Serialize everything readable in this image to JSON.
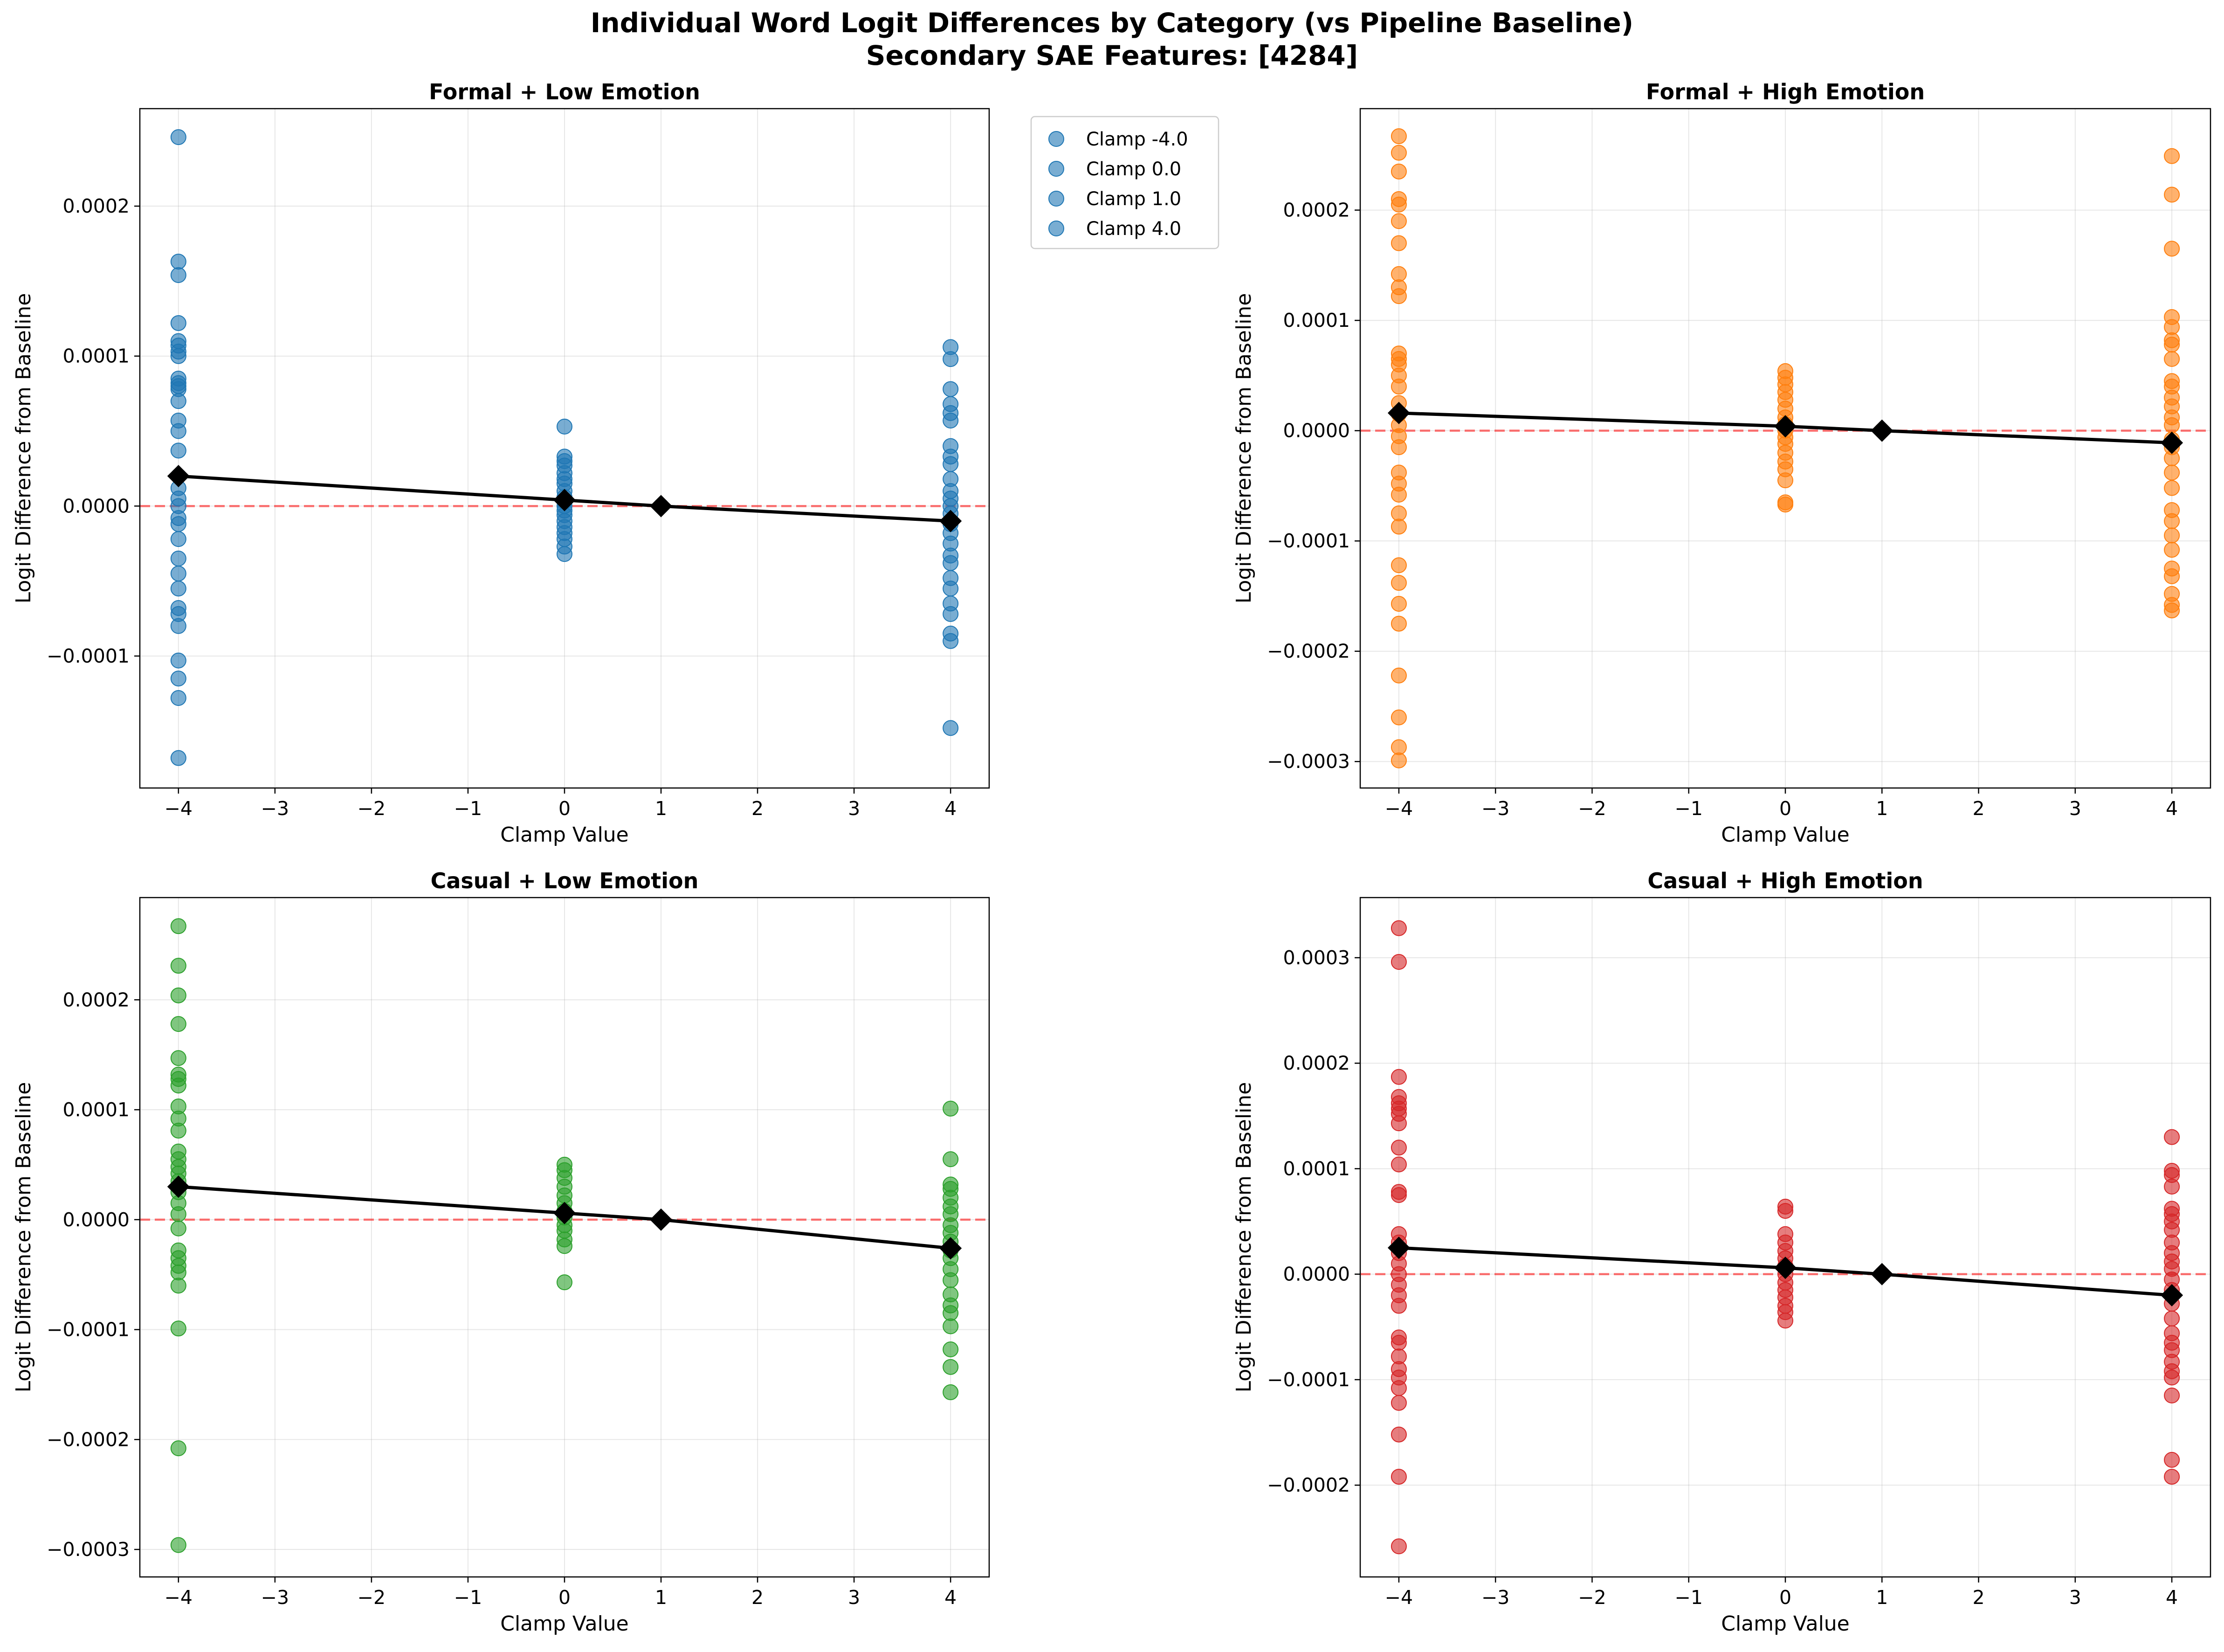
{
  "title_line1": "Individual Word Logit Differences by Category (vs Pipeline Baseline)",
  "title_line2": "Secondary SAE Features: [4284]",
  "legend": {
    "entries": [
      "Clamp -4.0",
      "Clamp 0.0",
      "Clamp 1.0",
      "Clamp 4.0"
    ],
    "color": "#1f77b4"
  },
  "chart_data": [
    {
      "type": "scatter",
      "title": "Formal + Low Emotion",
      "xlabel": "Clamp Value",
      "ylabel": "Logit Difference from Baseline",
      "color": "#1f77b4",
      "xlim": [
        -4.4,
        4.4
      ],
      "ylim": [
        -0.000188,
        0.000265
      ],
      "xticks": [
        -4,
        -3,
        -2,
        -1,
        0,
        1,
        2,
        3,
        4
      ],
      "yticks": [
        -0.0001,
        0.0,
        0.0001,
        0.0002
      ],
      "ytick_labels": [
        "−0.0001",
        "0.0000",
        "0.0001",
        "0.0002"
      ],
      "baseline": 0,
      "points": [
        {
          "x": -4,
          "ys": [
            0.000246,
            0.000163,
            0.000154,
            0.000122,
            0.00011,
            0.000107,
            0.000103,
            0.0001,
            8.5e-05,
            8.2e-05,
            8e-05,
            7.8e-05,
            7e-05,
            5.7e-05,
            5e-05,
            3.7e-05,
            2e-05,
            1.2e-05,
            5e-06,
            0.0,
            -8e-06,
            -1.2e-05,
            -2.2e-05,
            -3.5e-05,
            -4.5e-05,
            -5.5e-05,
            -6.8e-05,
            -7.2e-05,
            -8e-05,
            -0.000103,
            -0.000115,
            -0.000128,
            -0.000168
          ]
        },
        {
          "x": 0,
          "ys": [
            5.3e-05,
            3.3e-05,
            3e-05,
            2.7e-05,
            2.2e-05,
            1.8e-05,
            1.5e-05,
            1e-05,
            6e-06,
            3e-06,
            0.0,
            -3e-06,
            -6e-06,
            -1e-05,
            -1.4e-05,
            -1.8e-05,
            -2.2e-05,
            -2.7e-05,
            -3.2e-05
          ]
        },
        {
          "x": 1,
          "ys": [
            0.0
          ]
        },
        {
          "x": 4,
          "ys": [
            0.000106,
            9.8e-05,
            7.8e-05,
            6.8e-05,
            6.2e-05,
            5.7e-05,
            4e-05,
            3.3e-05,
            2.8e-05,
            1.8e-05,
            1e-05,
            5e-06,
            0.0,
            -5e-06,
            -1.2e-05,
            -1.8e-05,
            -2.5e-05,
            -3.3e-05,
            -3.8e-05,
            -4.8e-05,
            -5.5e-05,
            -6.5e-05,
            -7.2e-05,
            -8.5e-05,
            -9e-05,
            -0.000148
          ]
        }
      ],
      "means": {
        "x": [
          -4,
          0,
          1,
          4
        ],
        "y": [
          2e-05,
          4e-06,
          0.0,
          -1e-05
        ]
      }
    },
    {
      "type": "scatter",
      "title": "Formal + High Emotion",
      "xlabel": "Clamp Value",
      "ylabel": "Logit Difference from Baseline",
      "color": "#ff7f0e",
      "xlim": [
        -4.4,
        4.4
      ],
      "ylim": [
        -0.000324,
        0.000292
      ],
      "xticks": [
        -4,
        -3,
        -2,
        -1,
        0,
        1,
        2,
        3,
        4
      ],
      "yticks": [
        -0.0003,
        -0.0002,
        -0.0001,
        0.0,
        0.0001,
        0.0002
      ],
      "ytick_labels": [
        "−0.0003",
        "−0.0002",
        "−0.0001",
        "0.0000",
        "0.0001",
        "0.0002"
      ],
      "baseline": 0,
      "points": [
        {
          "x": -4,
          "ys": [
            0.000267,
            0.000252,
            0.000235,
            0.00021,
            0.000205,
            0.00019,
            0.00017,
            0.000142,
            0.00013,
            0.000122,
            7e-05,
            6.5e-05,
            6e-05,
            5e-05,
            4e-05,
            2.5e-05,
            1.5e-05,
            5e-06,
            -5e-06,
            -1.5e-05,
            -3.8e-05,
            -4.8e-05,
            -5.8e-05,
            -7.5e-05,
            -8.7e-05,
            -0.000122,
            -0.000138,
            -0.000157,
            -0.000175,
            -0.000222,
            -0.00026,
            -0.000287,
            -0.000299
          ]
        },
        {
          "x": 0,
          "ys": [
            5.4e-05,
            4.8e-05,
            4.2e-05,
            3.5e-05,
            2.8e-05,
            2e-05,
            1.2e-05,
            6e-06,
            0.0,
            -6e-06,
            -1.2e-05,
            -2e-05,
            -2.8e-05,
            -3.5e-05,
            -4.5e-05,
            -6.5e-05,
            -6.7e-05
          ]
        },
        {
          "x": 1,
          "ys": [
            0.0
          ]
        },
        {
          "x": 4,
          "ys": [
            0.000249,
            0.000214,
            0.000165,
            0.000103,
            9.4e-05,
            8.2e-05,
            7.8e-05,
            6.5e-05,
            4.5e-05,
            4e-05,
            3e-05,
            2.2e-05,
            1.2e-05,
            5e-06,
            -8e-06,
            -1.5e-05,
            -2.5e-05,
            -3.8e-05,
            -5.2e-05,
            -7.2e-05,
            -8.2e-05,
            -9.5e-05,
            -0.000108,
            -0.000125,
            -0.000132,
            -0.000148,
            -0.000158,
            -0.000163
          ]
        }
      ],
      "means": {
        "x": [
          -4,
          0,
          1,
          4
        ],
        "y": [
          1.6e-05,
          4e-06,
          0.0,
          -1.1e-05
        ]
      }
    },
    {
      "type": "scatter",
      "title": "Casual + Low Emotion",
      "xlabel": "Clamp Value",
      "ylabel": "Logit Difference from Baseline",
      "color": "#2ca02c",
      "xlim": [
        -4.4,
        4.4
      ],
      "ylim": [
        -0.000325,
        0.000293
      ],
      "xticks": [
        -4,
        -3,
        -2,
        -1,
        0,
        1,
        2,
        3,
        4
      ],
      "yticks": [
        -0.0003,
        -0.0002,
        -0.0001,
        0.0,
        0.0001,
        0.0002
      ],
      "ytick_labels": [
        "−0.0003",
        "−0.0002",
        "−0.0001",
        "0.0000",
        "0.0001",
        "0.0002"
      ],
      "baseline": 0,
      "points": [
        {
          "x": -4,
          "ys": [
            0.000267,
            0.000231,
            0.000204,
            0.000178,
            0.000147,
            0.000132,
            0.000128,
            0.000122,
            0.000103,
            9.2e-05,
            8.1e-05,
            6.2e-05,
            5.5e-05,
            4.8e-05,
            4.2e-05,
            3.5e-05,
            2.5e-05,
            1.5e-05,
            5e-06,
            -8e-06,
            -2.8e-05,
            -3.5e-05,
            -4.2e-05,
            -4.8e-05,
            -6e-05,
            -9.9e-05,
            -0.000208,
            -0.000296
          ]
        },
        {
          "x": 0,
          "ys": [
            5e-05,
            4.5e-05,
            3.8e-05,
            3e-05,
            2.2e-05,
            1.5e-05,
            8e-06,
            2e-06,
            -5e-06,
            -1e-05,
            -1.8e-05,
            -2.4e-05,
            -5.7e-05
          ]
        },
        {
          "x": 1,
          "ys": [
            0.0
          ]
        },
        {
          "x": 4,
          "ys": [
            0.000101,
            5.5e-05,
            3.2e-05,
            2.8e-05,
            2e-05,
            1.2e-05,
            5e-06,
            -5e-06,
            -1.2e-05,
            -2e-05,
            -2.8e-05,
            -3.5e-05,
            -4.5e-05,
            -5.5e-05,
            -6.8e-05,
            -7.8e-05,
            -8.5e-05,
            -9.7e-05,
            -0.000118,
            -0.000134,
            -0.000157
          ]
        }
      ],
      "means": {
        "x": [
          -4,
          0,
          1,
          4
        ],
        "y": [
          3e-05,
          6e-06,
          0.0,
          -2.6e-05
        ]
      }
    },
    {
      "type": "scatter",
      "title": "Casual + High Emotion",
      "xlabel": "Clamp Value",
      "ylabel": "Logit Difference from Baseline",
      "color": "#d62728",
      "xlim": [
        -4.4,
        4.4
      ],
      "ylim": [
        -0.000287,
        0.000357
      ],
      "xticks": [
        -4,
        -3,
        -2,
        -1,
        0,
        1,
        2,
        3,
        4
      ],
      "yticks": [
        -0.0002,
        -0.0001,
        0.0,
        0.0001,
        0.0002,
        0.0003
      ],
      "ytick_labels": [
        "−0.0002",
        "−0.0001",
        "0.0000",
        "0.0001",
        "0.0002",
        "0.0003"
      ],
      "baseline": 0,
      "points": [
        {
          "x": -4,
          "ys": [
            0.000328,
            0.000296,
            0.000187,
            0.000168,
            0.000162,
            0.000157,
            0.000152,
            0.000143,
            0.00012,
            0.000104,
            7.8e-05,
            7.5e-05,
            3.8e-05,
            3e-05,
            2e-05,
            1e-05,
            0.0,
            -1e-05,
            -2e-05,
            -3e-05,
            -6e-05,
            -6.5e-05,
            -7.8e-05,
            -9e-05,
            -9.8e-05,
            -0.000108,
            -0.000122,
            -0.000152,
            -0.000192,
            -0.000258
          ]
        },
        {
          "x": 0,
          "ys": [
            6.4e-05,
            6e-05,
            3.8e-05,
            3e-05,
            2.2e-05,
            1.5e-05,
            8e-06,
            0.0,
            -8e-06,
            -1.5e-05,
            -2.2e-05,
            -3e-05,
            -3.6e-05,
            -4.4e-05
          ]
        },
        {
          "x": 1,
          "ys": [
            0.0
          ]
        },
        {
          "x": 4,
          "ys": [
            0.00013,
            9.8e-05,
            9.4e-05,
            8.3e-05,
            6.2e-05,
            5.7e-05,
            5e-05,
            4.2e-05,
            3e-05,
            2e-05,
            1.2e-05,
            5e-06,
            -5e-06,
            -1.5e-05,
            -2.8e-05,
            -4.2e-05,
            -5.6e-05,
            -6.5e-05,
            -7.2e-05,
            -8.3e-05,
            -9.2e-05,
            -9.8e-05,
            -0.000115,
            -0.000176,
            -0.000192
          ]
        }
      ],
      "means": {
        "x": [
          -4,
          0,
          1,
          4
        ],
        "y": [
          2.5e-05,
          6e-06,
          0.0,
          -2e-05
        ]
      }
    }
  ]
}
